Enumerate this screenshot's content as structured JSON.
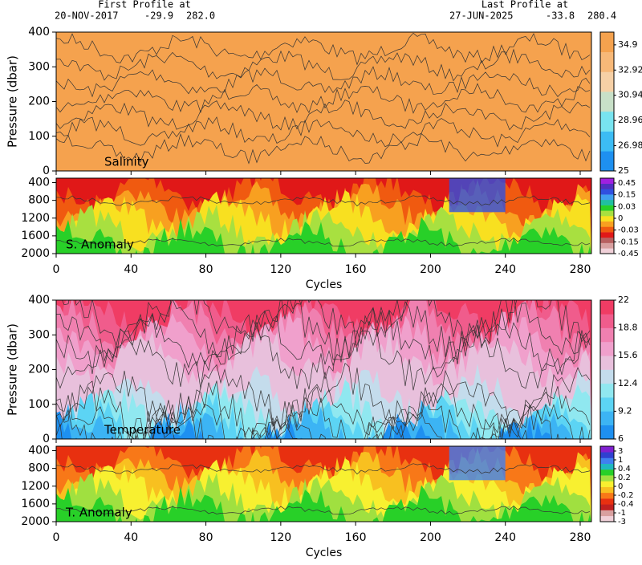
{
  "header": {
    "first": {
      "label": "First Profile at",
      "date": "20-NOV-2017",
      "lat": "-29.9",
      "lon": "282.0"
    },
    "last": {
      "label": "Last Profile at",
      "date": "27-JUN-2025",
      "lat": "-33.8",
      "lon": "280.4"
    }
  },
  "chart_data": [
    {
      "type": "contour",
      "title": "Salinity",
      "ylabel": "Pressure (dbar)",
      "ylim": [
        400,
        0
      ],
      "yticks": [
        0,
        100,
        200,
        300,
        400
      ],
      "colorbar": {
        "scale": "linear",
        "lim": [
          25,
          35.9
        ],
        "ticks": [
          34.9,
          32.92,
          30.94,
          28.96,
          26.98,
          25
        ],
        "colors": [
          "#1e90f0",
          "#3cbcf4",
          "#78e4f0",
          "#c8e0c8",
          "#f6d0a6",
          "#f7b878",
          "#f5a24e"
        ]
      }
    },
    {
      "type": "anomaly",
      "title": "S. Anomaly",
      "xlabel": "Cycles",
      "xlim": [
        0,
        286
      ],
      "xticks": [
        0,
        40,
        80,
        120,
        160,
        200,
        240,
        280
      ],
      "ylim": [
        300,
        2000
      ],
      "yticks": [
        400,
        800,
        1200,
        1600,
        2000
      ],
      "colorbar": {
        "scale": "levels",
        "ticks": [
          0.45,
          0.15,
          0.03,
          0,
          -0.03,
          -0.15,
          -0.45
        ],
        "colors": [
          "#f0d0d8",
          "#d8a0a0",
          "#b86060",
          "#e01818",
          "#f05a10",
          "#f8a020",
          "#f8e020",
          "#a8e040",
          "#28d028",
          "#20c0a0",
          "#40a0f0",
          "#3050e0",
          "#5030c0",
          "#a020e0"
        ]
      }
    },
    {
      "type": "contour",
      "title": "Temperature",
      "ylabel": "Pressure (dbar)",
      "ylim": [
        400,
        0
      ],
      "yticks": [
        0,
        100,
        200,
        300,
        400
      ],
      "colorbar": {
        "scale": "linear",
        "lim": [
          6,
          22
        ],
        "ticks": [
          22,
          18.8,
          15.6,
          12.4,
          9.2,
          6
        ],
        "colors": [
          "#1e90f0",
          "#3cb4f4",
          "#5cd4f4",
          "#90e8f0",
          "#c4dcec",
          "#e8c0dc",
          "#f0a0cc",
          "#f080b0",
          "#f05c8c",
          "#f03c64"
        ]
      }
    },
    {
      "type": "anomaly",
      "title": "T. Anomaly",
      "xlabel": "Cycles",
      "xlim": [
        0,
        286
      ],
      "xticks": [
        0,
        40,
        80,
        120,
        160,
        200,
        240,
        280
      ],
      "ylim": [
        300,
        2000
      ],
      "yticks": [
        400,
        800,
        1200,
        1600,
        2000
      ],
      "colorbar": {
        "scale": "levels",
        "ticks": [
          3,
          1,
          0.4,
          0.2,
          0,
          -0.2,
          -0.4,
          -1,
          -3
        ],
        "colors": [
          "#f0d0d8",
          "#d8a0a0",
          "#c02020",
          "#e83010",
          "#f87818",
          "#f8c020",
          "#f8f030",
          "#a0e040",
          "#28d028",
          "#20b8c0",
          "#4080f0",
          "#3040d0",
          "#8020d0"
        ]
      }
    }
  ]
}
